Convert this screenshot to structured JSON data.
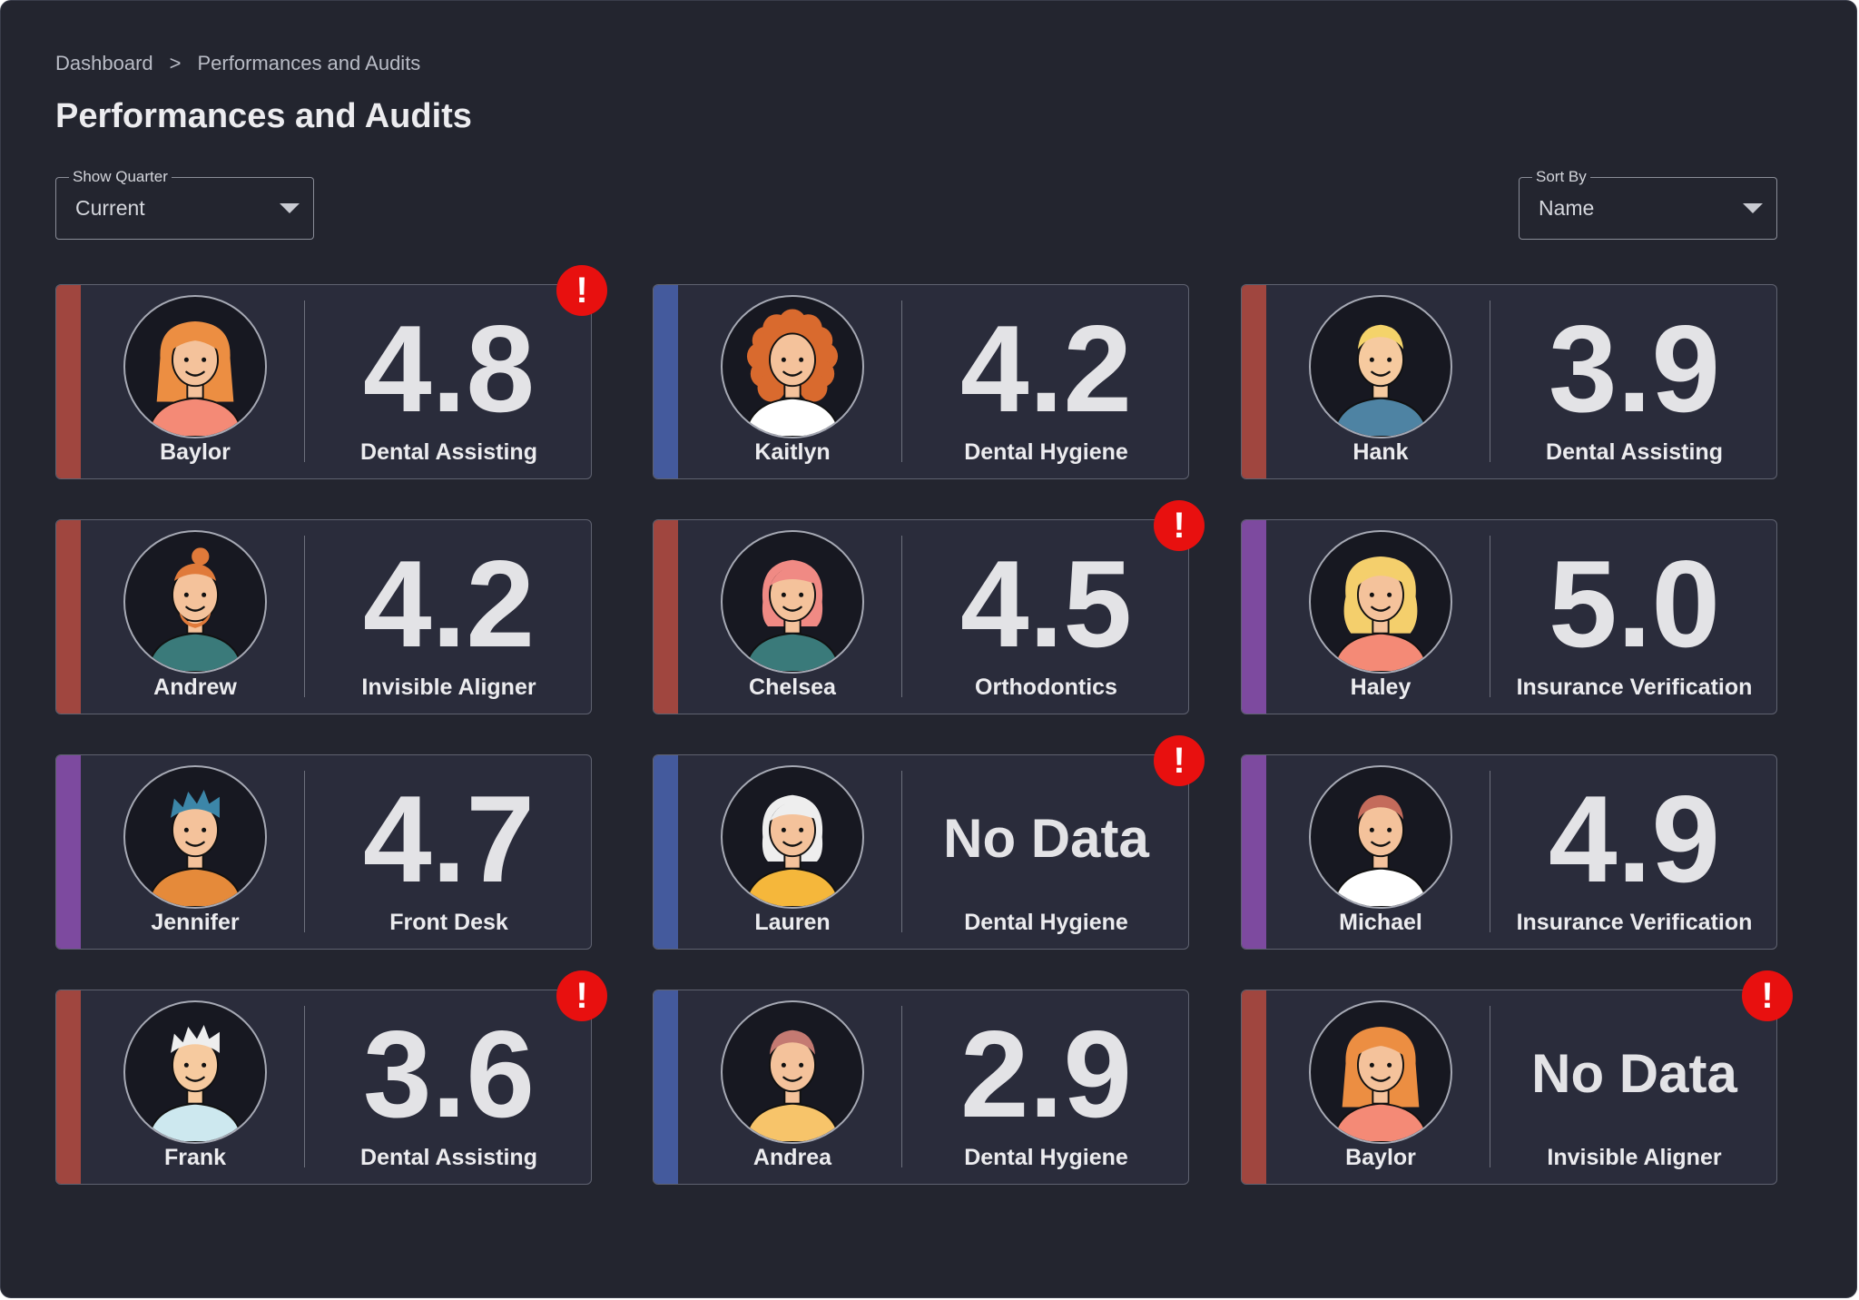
{
  "breadcrumb": {
    "items": [
      "Dashboard",
      "Performances and Audits"
    ],
    "separator": ">"
  },
  "page_title": "Performances and Audits",
  "filters": {
    "quarter": {
      "label": "Show Quarter",
      "value": "Current"
    },
    "sort": {
      "label": "Sort By",
      "value": "Name"
    }
  },
  "colors": {
    "background": "#23252f",
    "card_background": "#2a2c3b",
    "stripe_red": "#a0463f",
    "stripe_blue": "#445a9d",
    "stripe_purple": "#7d4a9f",
    "alert": "#e8100f"
  },
  "alert_icon": "exclamation-icon",
  "alert_symbol": "!",
  "cards": [
    {
      "name": "Baylor",
      "score": "4.8",
      "department": "Dental Assisting",
      "stripe": "#a0463f",
      "alert": true,
      "avatar": {
        "skin": "#f4c29b",
        "hair": "#ec8e42",
        "shirt": "#f48a76",
        "style": "long"
      }
    },
    {
      "name": "Kaitlyn",
      "score": "4.2",
      "department": "Dental Hygiene",
      "stripe": "#445a9d",
      "alert": false,
      "avatar": {
        "skin": "#f4c29b",
        "hair": "#d96a2e",
        "shirt": "#ffffff",
        "style": "curly"
      }
    },
    {
      "name": "Hank",
      "score": "3.9",
      "department": "Dental Assisting",
      "stripe": "#a0463f",
      "alert": false,
      "avatar": {
        "skin": "#f6ca9f",
        "hair": "#f4d36a",
        "shirt": "#4e83a3",
        "style": "short"
      }
    },
    {
      "name": "Andrew",
      "score": "4.2",
      "department": "Invisible Aligner",
      "stripe": "#a0463f",
      "alert": false,
      "avatar": {
        "skin": "#f4c29b",
        "hair": "#e07a3a",
        "shirt": "#3a7a7a",
        "style": "bun"
      }
    },
    {
      "name": "Chelsea",
      "score": "4.5",
      "department": "Orthodontics",
      "stripe": "#a0463f",
      "alert": true,
      "avatar": {
        "skin": "#f4c29b",
        "hair": "#f08a84",
        "shirt": "#3a7a7a",
        "style": "bob"
      }
    },
    {
      "name": "Haley",
      "score": "5.0",
      "department": "Insurance Verification",
      "stripe": "#7d4a9f",
      "alert": false,
      "avatar": {
        "skin": "#f4c29b",
        "hair": "#f4cf6c",
        "shirt": "#f48a76",
        "style": "wavy"
      }
    },
    {
      "name": "Jennifer",
      "score": "4.7",
      "department": "Front Desk",
      "stripe": "#7d4a9f",
      "alert": false,
      "avatar": {
        "skin": "#f4c29b",
        "hair": "#3c86a8",
        "shirt": "#e58a3a",
        "style": "spiky"
      }
    },
    {
      "name": "Lauren",
      "score": "No Data",
      "department": "Dental Hygiene",
      "stripe": "#445a9d",
      "alert": true,
      "avatar": {
        "skin": "#f4c29b",
        "hair": "#eeeeee",
        "shirt": "#f5b73b",
        "style": "bob"
      }
    },
    {
      "name": "Michael",
      "score": "4.9",
      "department": "Insurance Verification",
      "stripe": "#7d4a9f",
      "alert": false,
      "avatar": {
        "skin": "#f4c29b",
        "hair": "#c46b5b",
        "shirt": "#ffffff",
        "style": "short"
      }
    },
    {
      "name": "Frank",
      "score": "3.6",
      "department": "Dental Assisting",
      "stripe": "#a0463f",
      "alert": true,
      "avatar": {
        "skin": "#f6ca9f",
        "hair": "#eeeeee",
        "shirt": "#cde8ef",
        "style": "spiky"
      }
    },
    {
      "name": "Andrea",
      "score": "2.9",
      "department": "Dental Hygiene",
      "stripe": "#445a9d",
      "alert": false,
      "avatar": {
        "skin": "#f4c29b",
        "hair": "#c47a72",
        "shirt": "#f7c46a",
        "style": "short"
      }
    },
    {
      "name": "Baylor",
      "score": "No Data",
      "department": "Invisible Aligner",
      "stripe": "#a0463f",
      "alert": true,
      "avatar": {
        "skin": "#f4c29b",
        "hair": "#ec8e42",
        "shirt": "#f48a76",
        "style": "long"
      }
    }
  ]
}
